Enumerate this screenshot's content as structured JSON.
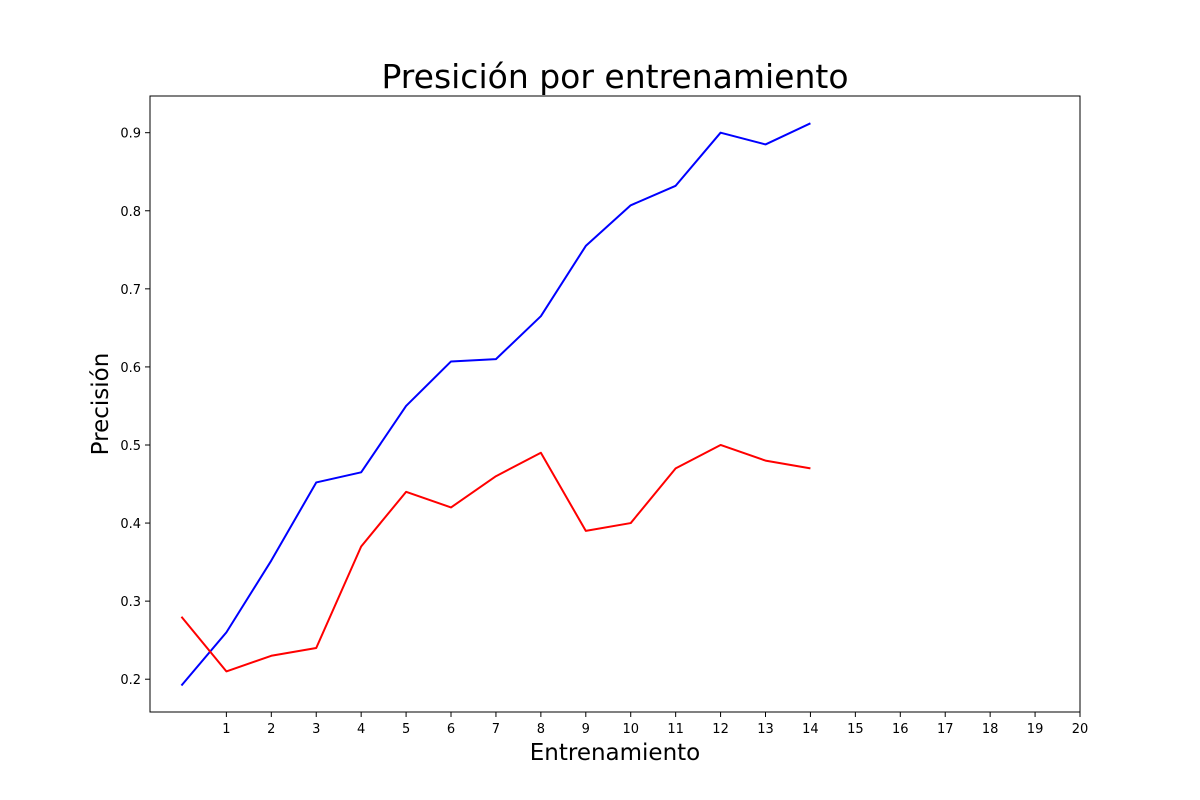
{
  "chart_data": {
    "type": "line",
    "title": "Presición por entrenamiento",
    "xlabel": "Entrenamiento",
    "ylabel": "Precisión",
    "xlim": [
      -0.7,
      20
    ],
    "ylim": [
      0.158,
      0.947
    ],
    "xticks": [
      1,
      2,
      3,
      4,
      5,
      6,
      7,
      8,
      9,
      10,
      11,
      12,
      13,
      14,
      15,
      16,
      17,
      18,
      19,
      20
    ],
    "yticks": [
      0.2,
      0.3,
      0.4,
      0.5,
      0.6,
      0.7,
      0.8,
      0.9
    ],
    "grid": false,
    "x": [
      0,
      1,
      2,
      3,
      4,
      5,
      6,
      7,
      8,
      9,
      10,
      11,
      12,
      13,
      14
    ],
    "series": [
      {
        "color": "#0000ff",
        "values": [
          0.192,
          0.26,
          0.352,
          0.452,
          0.465,
          0.55,
          0.607,
          0.61,
          0.665,
          0.755,
          0.807,
          0.832,
          0.9,
          0.885,
          0.912
        ]
      },
      {
        "color": "#ff0000",
        "values": [
          0.28,
          0.21,
          0.23,
          0.24,
          0.37,
          0.44,
          0.42,
          0.46,
          0.49,
          0.39,
          0.4,
          0.47,
          0.5,
          0.48,
          0.47
        ]
      }
    ]
  }
}
